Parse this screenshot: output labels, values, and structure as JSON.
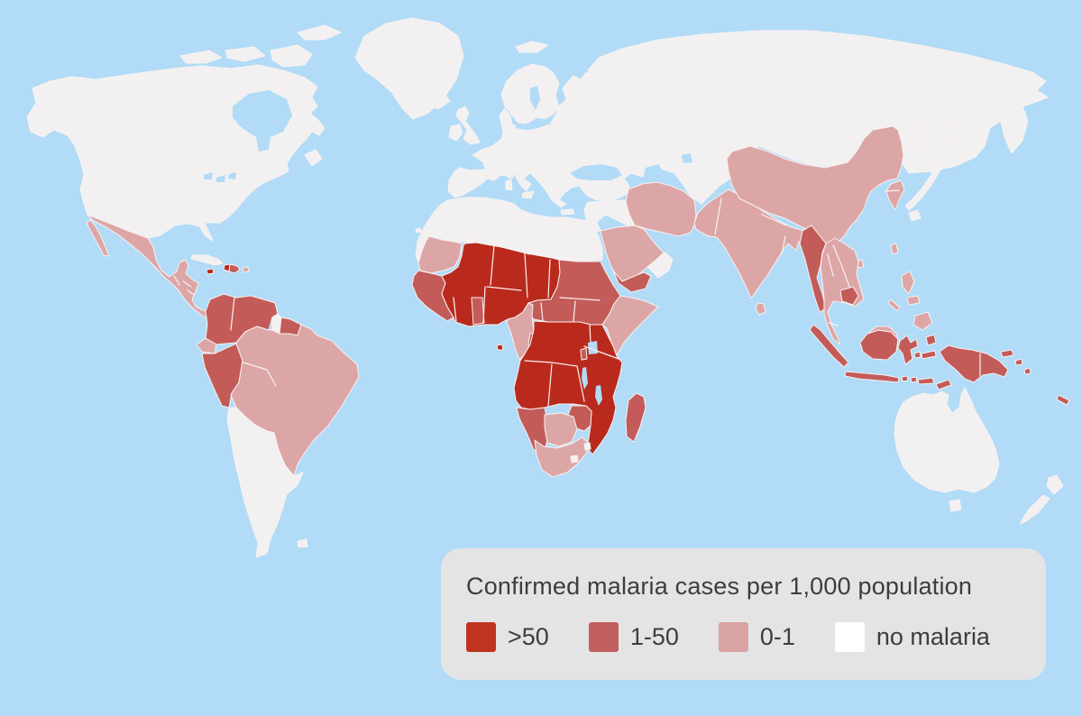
{
  "legend": {
    "title": "Confirmed malaria cases per 1,000 population",
    "background": "#e5e4e4",
    "text_color": "#3d3d3d"
  },
  "map": {
    "ocean_color": "#b1dbf7",
    "border_color": "#f8f2f1",
    "categories": [
      {
        "id": "gt50",
        "label": ">50",
        "color": "#b92a1d",
        "swatch": "#c0341f"
      },
      {
        "id": "1to50",
        "label": "1-50",
        "color": "#c35c59",
        "swatch": "#c05f5e"
      },
      {
        "id": "0to1",
        "label": "0-1",
        "color": "#dda6a6",
        "swatch": "#d9a2a3"
      },
      {
        "id": "none",
        "label": "no malaria",
        "color": "#f2f0f0",
        "swatch": "#ffffff"
      }
    ],
    "regions": [
      {
        "id": "north-america",
        "category": "none"
      },
      {
        "id": "arctic-islands",
        "category": "none"
      },
      {
        "id": "newfoundland",
        "category": "none"
      },
      {
        "id": "greenland",
        "category": "none"
      },
      {
        "id": "iceland",
        "category": "none"
      },
      {
        "id": "svalbard",
        "category": "none"
      },
      {
        "id": "novaya-zemlya",
        "category": "none"
      },
      {
        "id": "cuba",
        "category": "none"
      },
      {
        "id": "haiti",
        "category": "gt50"
      },
      {
        "id": "jamaica",
        "category": "gt50"
      },
      {
        "id": "dominican-republic",
        "category": "1to50"
      },
      {
        "id": "puerto-rico",
        "category": "0to1"
      },
      {
        "id": "mexico-central-america",
        "category": "0to1"
      },
      {
        "id": "baja-california",
        "category": "0to1"
      },
      {
        "id": "colombia-venezuela",
        "category": "1to50"
      },
      {
        "id": "guyana",
        "category": "none"
      },
      {
        "id": "suriname-guiana",
        "category": "1to50"
      },
      {
        "id": "ecuador",
        "category": "0to1"
      },
      {
        "id": "peru",
        "category": "1to50"
      },
      {
        "id": "brazil-bolivia",
        "category": "0to1"
      },
      {
        "id": "southern-cone",
        "category": "none"
      },
      {
        "id": "falkland-islands",
        "category": "none"
      },
      {
        "id": "eurasia",
        "category": "none"
      },
      {
        "id": "scandinavia",
        "category": "none"
      },
      {
        "id": "uk",
        "category": "none"
      },
      {
        "id": "ireland",
        "category": "none"
      },
      {
        "id": "italy",
        "category": "none"
      },
      {
        "id": "sicily",
        "category": "none"
      },
      {
        "id": "sardinia",
        "category": "none"
      },
      {
        "id": "corsica",
        "category": "none"
      },
      {
        "id": "crete",
        "category": "none"
      },
      {
        "id": "cyprus",
        "category": "none"
      },
      {
        "id": "levant-iraq",
        "category": "none"
      },
      {
        "id": "canary-islands",
        "category": "none"
      },
      {
        "id": "iran",
        "category": "0to1"
      },
      {
        "id": "arabian-peninsula",
        "category": "0to1"
      },
      {
        "id": "yemen",
        "category": "1to50"
      },
      {
        "id": "oman",
        "category": "none"
      },
      {
        "id": "north-africa",
        "category": "none"
      },
      {
        "id": "mauritania",
        "category": "0to1"
      },
      {
        "id": "senegal-guinea",
        "category": "1to50"
      },
      {
        "id": "togo-benin",
        "category": "1to50"
      },
      {
        "id": "sahel-west-africa",
        "category": "gt50"
      },
      {
        "id": "sudan-ethiopia-belt",
        "category": "1to50"
      },
      {
        "id": "somalia",
        "category": "0to1"
      },
      {
        "id": "cameroon-gabon",
        "category": "0to1"
      },
      {
        "id": "congo",
        "category": "1to50"
      },
      {
        "id": "central-east-africa",
        "category": "gt50"
      },
      {
        "id": "rwanda-burundi",
        "category": "1to50"
      },
      {
        "id": "namibia",
        "category": "1to50"
      },
      {
        "id": "zimbabwe",
        "category": "1to50"
      },
      {
        "id": "botswana",
        "category": "0to1"
      },
      {
        "id": "south-africa",
        "category": "0to1"
      },
      {
        "id": "lesotho",
        "category": "none"
      },
      {
        "id": "swaziland",
        "category": "none"
      },
      {
        "id": "madagascar",
        "category": "1to50"
      },
      {
        "id": "sao-tome",
        "category": "gt50"
      },
      {
        "id": "south-asia",
        "category": "0to1"
      },
      {
        "id": "sri-lanka",
        "category": "0to1"
      },
      {
        "id": "china",
        "category": "0to1"
      },
      {
        "id": "korea",
        "category": "0to1"
      },
      {
        "id": "taiwan",
        "category": "0to1"
      },
      {
        "id": "hainan",
        "category": "0to1"
      },
      {
        "id": "japan",
        "category": "none"
      },
      {
        "id": "sakhalin",
        "category": "none"
      },
      {
        "id": "myanmar",
        "category": "1to50"
      },
      {
        "id": "indochina",
        "category": "0to1"
      },
      {
        "id": "cambodia",
        "category": "1to50"
      },
      {
        "id": "sumatra",
        "category": "1to50"
      },
      {
        "id": "java",
        "category": "1to50"
      },
      {
        "id": "bali-lombok",
        "category": "1to50"
      },
      {
        "id": "lesser-sunda",
        "category": "1to50"
      },
      {
        "id": "timor",
        "category": "1to50"
      },
      {
        "id": "borneo-north",
        "category": "0to1"
      },
      {
        "id": "borneo-south",
        "category": "1to50"
      },
      {
        "id": "sulawesi",
        "category": "1to50"
      },
      {
        "id": "halmahera",
        "category": "1to50"
      },
      {
        "id": "seram",
        "category": "1to50"
      },
      {
        "id": "buru",
        "category": "1to50"
      },
      {
        "id": "philippines",
        "category": "0to1"
      },
      {
        "id": "new-guinea",
        "category": "1to50"
      },
      {
        "id": "new-britain",
        "category": "1to50"
      },
      {
        "id": "solomon-islands",
        "category": "1to50"
      },
      {
        "id": "new-caledonia",
        "category": "1to50"
      },
      {
        "id": "australia",
        "category": "none"
      },
      {
        "id": "tasmania",
        "category": "none"
      },
      {
        "id": "new-zealand",
        "category": "none"
      }
    ]
  }
}
